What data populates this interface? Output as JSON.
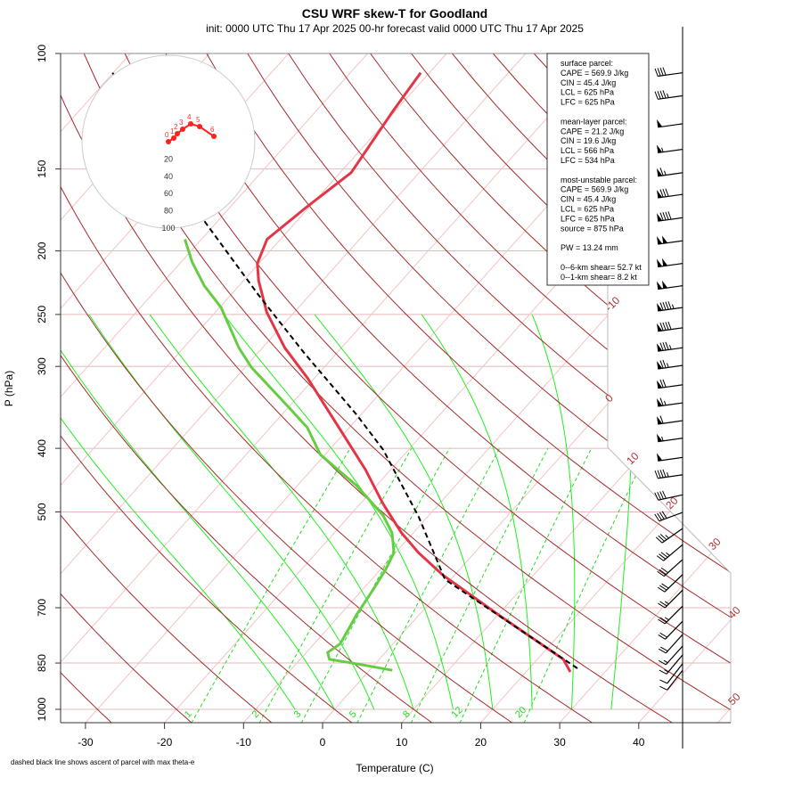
{
  "header": {
    "title": "CSU WRF skew-T for Goodland",
    "subtitle": "init: 0000 UTC Thu 17 Apr 2025     00-hr forecast valid 0000 UTC Thu 17 Apr 2025"
  },
  "footnote": "dashed black line shows ascent of parcel with max theta-e",
  "info_box": {
    "lines": [
      "surface parcel:",
      "CAPE = 569.9 J/kg",
      "CIN = 45.4 J/kg",
      "LCL = 625 hPa",
      "LFC = 625 hPa",
      "",
      "mean-layer parcel:",
      "CAPE = 21.2 J/kg",
      "CIN = 19.6 J/kg",
      "LCL = 566 hPa",
      "LFC = 534 hPa",
      "",
      "most-unstable parcel:",
      "CAPE = 569.9 J/kg",
      "CIN = 45.4 J/kg",
      "LCL = 625 hPa",
      "LFC = 625 hPa",
      "source = 875 hPa",
      "",
      "PW =  13.24 mm",
      "",
      "0--6-km shear= 52.7 kt",
      "0--1-km shear= 8.2 kt"
    ]
  },
  "colors": {
    "temperature": "#e33545",
    "dewpoint": "#66cc44",
    "parcel": "#000000",
    "dry_adiabat": "#a52a2a",
    "isotherm": "#f0c4c4",
    "isobar": "#e4b8b8",
    "moist_adiabat": "#22ee22",
    "mixing_ratio": "#22dd22",
    "hodograph": "#ff2020"
  },
  "chart_data": {
    "type": "line",
    "subtype": "skew-T log-P",
    "xlabel": "Temperature (C)",
    "ylabel": "P (hPa)",
    "x_ticks": [
      "-30",
      "-20",
      "-10",
      "0",
      "10",
      "20",
      "30",
      "40"
    ],
    "x_tick_values": [
      -30,
      -20,
      -10,
      0,
      10,
      20,
      30,
      40
    ],
    "y_ticks": [
      "100",
      "150",
      "200",
      "250",
      "300",
      "400",
      "500",
      "700",
      "850",
      "1000"
    ],
    "y_tick_values": [
      100,
      150,
      200,
      250,
      300,
      400,
      500,
      700,
      850,
      1000
    ],
    "ylim": [
      1000,
      100
    ],
    "isotherm_labels": [
      "-10",
      "0",
      "10",
      "20",
      "30",
      "40",
      "50"
    ],
    "mixing_ratio_labels": [
      "1",
      "2",
      "3",
      "5",
      "8",
      "12",
      "20"
    ],
    "mixing_ratio_values": [
      1,
      2,
      3,
      5,
      8,
      12,
      20
    ],
    "series": [
      {
        "name": "temperature",
        "p": [
          877,
          839,
          718,
          624,
          577,
          538,
          486,
          431,
          372,
          313,
          281,
          248,
          222,
          209,
          192,
          171,
          152,
          122,
          107
        ],
        "t": [
          25.6,
          23.3,
          10.1,
          -1.5,
          -7.1,
          -11.5,
          -17.1,
          -23.2,
          -31.3,
          -40.8,
          -47.2,
          -53.5,
          -58.1,
          -60.2,
          -61.7,
          -60.3,
          -58.6,
          -60.3,
          -61.1
        ]
      },
      {
        "name": "dewpoint",
        "p": [
          872,
          852,
          839,
          819,
          794,
          718,
          654,
          614,
          577,
          538,
          506,
          456,
          409,
          372,
          344,
          301,
          281,
          244,
          226,
          208,
          192
        ],
        "t": [
          2.9,
          -2.4,
          -6.3,
          -7.3,
          -6.7,
          -7.9,
          -8.7,
          -9.3,
          -10.2,
          -12.7,
          -15.8,
          -22.5,
          -30.6,
          -35.3,
          -40.4,
          -49.2,
          -53.0,
          -59.8,
          -64.4,
          -68.6,
          -72.1
        ]
      },
      {
        "name": "parcel (max theta-e)",
        "p": [
          866,
          634,
          509,
          402,
          355,
          285,
          233,
          181,
          107
        ],
        "t": [
          26.1,
          -0.7,
          -11.1,
          -23.2,
          -30.6,
          -44.4,
          -56.6,
          -71.4,
          -100.1
        ]
      }
    ],
    "winds": {
      "p": [
        107,
        116,
        128,
        140,
        152,
        164,
        178,
        193,
        209,
        226,
        244,
        262,
        281,
        299,
        320,
        341,
        363,
        386,
        413,
        439,
        471,
        501,
        530,
        561,
        591,
        623,
        658,
        696,
        734,
        769,
        801,
        826,
        852,
        872
      ],
      "speed_kt": [
        40,
        45,
        50,
        55,
        65,
        80,
        90,
        100,
        100,
        100,
        95,
        90,
        85,
        75,
        70,
        65,
        60,
        55,
        50,
        45,
        40,
        40,
        35,
        35,
        30,
        30,
        25,
        25,
        20,
        20,
        15,
        15,
        10,
        10
      ],
      "direction_deg": [
        262,
        262,
        262,
        262,
        262,
        262,
        262,
        262,
        262,
        262,
        262,
        262,
        262,
        262,
        262,
        262,
        262,
        262,
        262,
        262,
        258,
        250,
        235,
        230,
        228,
        226,
        225,
        225,
        224,
        222,
        222,
        220,
        218,
        218
      ]
    },
    "hodograph": {
      "rings_kt": [
        20,
        40,
        60,
        80,
        100
      ],
      "ring_labels": [
        "20",
        "40",
        "60",
        "80",
        "100"
      ],
      "km_labels": [
        "0",
        "1",
        "2",
        "3",
        "4",
        "5",
        "6"
      ],
      "u_kt": [
        0,
        6.2,
        10.3,
        16.5,
        25.8,
        36.1,
        52.6
      ],
      "v_kt": [
        0,
        4.1,
        9.3,
        14.4,
        20.6,
        17.5,
        6.2
      ]
    }
  }
}
